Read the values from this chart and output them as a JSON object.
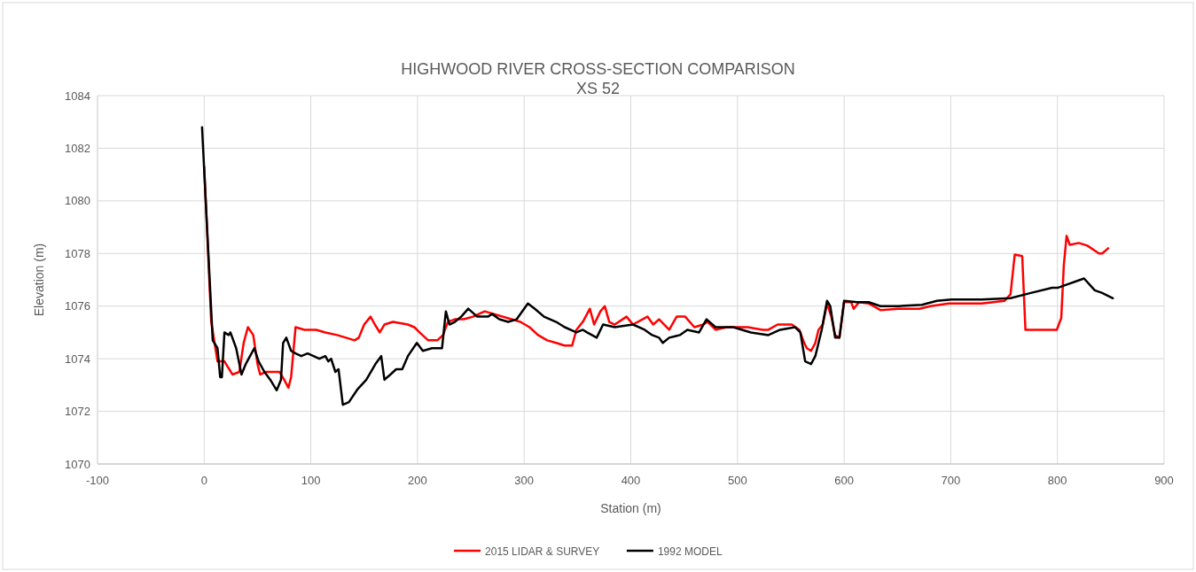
{
  "chart_data": {
    "type": "line",
    "title": "HIGHWOOD RIVER CROSS-SECTION COMPARISON",
    "subtitle": "XS 52",
    "xlabel": "Station (m)",
    "ylabel": "Elevation (m)",
    "xlim": [
      -100,
      900
    ],
    "xticks": [
      -100,
      0,
      100,
      200,
      300,
      400,
      500,
      600,
      700,
      800,
      900
    ],
    "ylim": [
      1070,
      1084
    ],
    "yticks": [
      1070,
      1072,
      1074,
      1076,
      1078,
      1080,
      1082,
      1084
    ],
    "grid": true,
    "legend": "bottom",
    "marker": "none",
    "line_style": "solid",
    "series": [
      {
        "name": "2015 LIDAR & SURVEY",
        "color": "#ff0000",
        "x": [
          0,
          6.6,
          12.5,
          19,
          26.5,
          33,
          37,
          41,
          46,
          50,
          52.5,
          58,
          62,
          70.6,
          75,
          79,
          81.5,
          85.7,
          94,
          105,
          113.6,
          124.6,
          133,
          141,
          145,
          150,
          156,
          160,
          164.6,
          169,
          177,
          191,
          197,
          202,
          210,
          218.6,
          224,
          228.5,
          235,
          243.5,
          252,
          263,
          271.6,
          288,
          296.5,
          305,
          313,
          321.6,
          330,
          338,
          345,
          349,
          355,
          361.6,
          365.6,
          371.5,
          375.6,
          379.8,
          385,
          396,
          402,
          415.6,
          421,
          426.5,
          436,
          443,
          451,
          459.6,
          468,
          472,
          479.5,
          490,
          509.6,
          523.6,
          529,
          537.7,
          551,
          558,
          562.6,
          565,
          569,
          573,
          576,
          580,
          584,
          588,
          591.6,
          595.6,
          600,
          606.6,
          609,
          614,
          623,
          634,
          650.7,
          670.6,
          681,
          698,
          729,
          750.5,
          756,
          760,
          767,
          770,
          778.6,
          789.5,
          799.4,
          803.6,
          806,
          808.6,
          811.6,
          820,
          828,
          839,
          842,
          847.6
        ],
        "values": [
          1081.3,
          1075.4,
          1073.9,
          1073.9,
          1073.4,
          1073.5,
          1074.6,
          1075.2,
          1074.9,
          1073.8,
          1073.4,
          1073.5,
          1073.5,
          1073.5,
          1073.2,
          1072.9,
          1073.3,
          1075.2,
          1075.1,
          1075.1,
          1075.0,
          1074.9,
          1074.8,
          1074.7,
          1074.8,
          1075.3,
          1075.6,
          1075.3,
          1075.0,
          1075.3,
          1075.4,
          1075.3,
          1075.2,
          1075.0,
          1074.7,
          1074.7,
          1074.9,
          1075.4,
          1075.5,
          1075.5,
          1075.6,
          1075.8,
          1075.7,
          1075.5,
          1075.4,
          1075.2,
          1074.9,
          1074.7,
          1074.6,
          1074.5,
          1074.5,
          1075.1,
          1075.4,
          1075.9,
          1075.3,
          1075.8,
          1076.0,
          1075.4,
          1075.3,
          1075.6,
          1075.3,
          1075.6,
          1075.3,
          1075.5,
          1075.1,
          1075.6,
          1075.6,
          1075.2,
          1075.3,
          1075.4,
          1075.1,
          1075.2,
          1075.2,
          1075.1,
          1075.1,
          1075.3,
          1075.3,
          1075.1,
          1074.6,
          1074.4,
          1074.3,
          1074.6,
          1075.1,
          1075.3,
          1076.1,
          1075.6,
          1074.9,
          1074.8,
          1076.15,
          1076.15,
          1075.9,
          1076.15,
          1076.1,
          1075.85,
          1075.9,
          1075.9,
          1076.0,
          1076.1,
          1076.1,
          1076.2,
          1076.45,
          1077.96,
          1077.9,
          1075.1,
          1075.1,
          1075.1,
          1075.1,
          1075.55,
          1077.56,
          1078.67,
          1078.33,
          1078.4,
          1078.3,
          1078.0,
          1078.0,
          1078.2
        ]
      },
      {
        "name": "1992 MODEL",
        "color": "#000000",
        "x": [
          -2,
          8,
          12.5,
          15,
          16.6,
          19,
          23,
          24.6,
          30,
          35,
          39,
          43,
          47,
          51,
          56.5,
          62,
          68,
          72,
          74,
          77,
          81.5,
          85.7,
          91,
          97,
          102.5,
          108,
          113.6,
          116.4,
          119,
          123,
          126,
          130,
          135.7,
          144,
          152,
          160.6,
          166,
          169,
          174.6,
          180,
          185.7,
          191,
          199.4,
          205,
          213.6,
          223,
          226.6,
          230,
          235,
          241,
          247.6,
          256,
          266,
          270,
          276.7,
          285,
          293,
          303.5,
          310,
          318.6,
          330,
          338,
          349,
          355,
          359,
          368,
          374,
          385,
          402,
          413,
          420,
          426.5,
          430,
          436,
          446,
          453,
          464,
          471,
          479.5,
          496,
          512.6,
          529,
          540,
          554,
          559,
          563.5,
          569,
          573,
          579,
          584,
          587,
          591.6,
          595.6,
          600,
          612,
          623,
          634,
          650.7,
          673,
          687,
          700.6,
          729,
          756,
          775,
          795,
          800.6,
          825,
          835,
          842,
          852
        ],
        "values": [
          1082.8,
          1074.7,
          1074.4,
          1073.3,
          1073.3,
          1075.0,
          1074.9,
          1075.0,
          1074.4,
          1073.4,
          1073.8,
          1074.1,
          1074.4,
          1073.9,
          1073.5,
          1073.2,
          1072.8,
          1073.2,
          1074.6,
          1074.8,
          1074.3,
          1074.2,
          1074.1,
          1074.2,
          1074.1,
          1074.0,
          1074.1,
          1073.9,
          1074.0,
          1073.5,
          1073.6,
          1072.25,
          1072.35,
          1072.85,
          1073.2,
          1073.8,
          1074.1,
          1073.2,
          1073.4,
          1073.6,
          1073.6,
          1074.1,
          1074.6,
          1074.3,
          1074.4,
          1074.4,
          1075.8,
          1075.3,
          1075.4,
          1075.6,
          1075.9,
          1075.6,
          1075.6,
          1075.7,
          1075.5,
          1075.4,
          1075.5,
          1076.1,
          1075.9,
          1075.6,
          1075.4,
          1075.2,
          1075.0,
          1075.1,
          1075.0,
          1074.8,
          1075.3,
          1075.2,
          1075.3,
          1075.1,
          1074.9,
          1074.8,
          1074.6,
          1074.8,
          1074.9,
          1075.1,
          1075.0,
          1075.5,
          1075.2,
          1075.2,
          1075.0,
          1074.9,
          1075.1,
          1075.2,
          1075.0,
          1073.9,
          1073.8,
          1074.1,
          1075.1,
          1076.2,
          1076.0,
          1074.8,
          1074.8,
          1076.2,
          1076.15,
          1076.15,
          1076.0,
          1076.0,
          1076.05,
          1076.2,
          1076.25,
          1076.25,
          1076.3,
          1076.5,
          1076.7,
          1076.7,
          1077.05,
          1076.6,
          1076.5,
          1076.3
        ]
      }
    ]
  }
}
